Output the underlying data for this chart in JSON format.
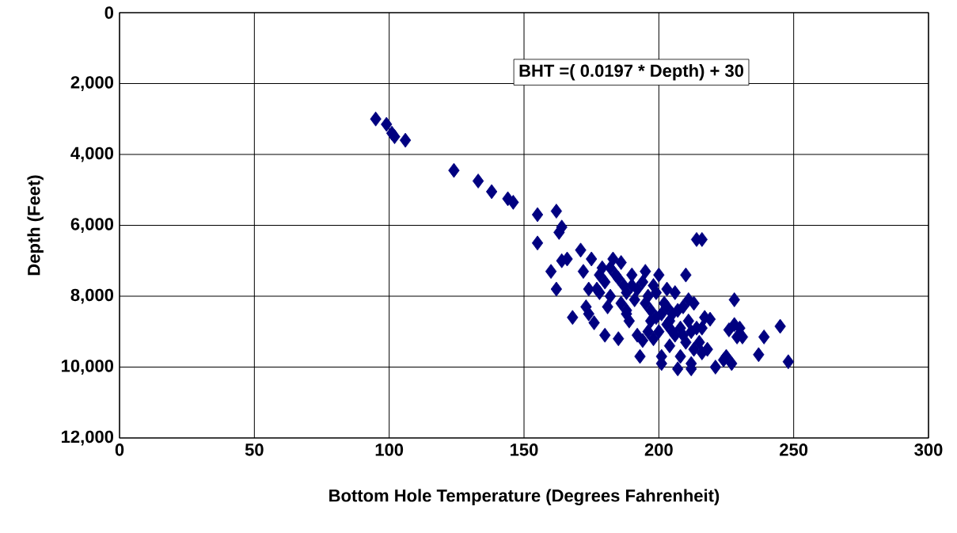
{
  "chart_data": {
    "type": "scatter",
    "xlabel": "Bottom Hole Temperature (Degrees Fahrenheit)",
    "ylabel": "Depth (Feet)",
    "annotations": [
      "BHT =( 0.0197 * Depth) + 30"
    ],
    "xlim": [
      0,
      300
    ],
    "xticks": [
      0,
      50,
      100,
      150,
      200,
      250,
      300
    ],
    "ylim": [
      12000,
      0
    ],
    "yticks": [
      {
        "value": 0,
        "label": "0"
      },
      {
        "value": 2000,
        "label": "2,000"
      },
      {
        "value": 4000,
        "label": "4,000"
      },
      {
        "value": 6000,
        "label": "6,000"
      },
      {
        "value": 8000,
        "label": "8,000"
      },
      {
        "value": 10000,
        "label": "10,000"
      },
      {
        "value": 12000,
        "label": "12,000"
      }
    ],
    "grid": true,
    "marker": "diamond",
    "series": [
      {
        "color": "#000080",
        "x": [
          95,
          99,
          101,
          102,
          106,
          124,
          133,
          138,
          144,
          146,
          155,
          155,
          162,
          163,
          164,
          164,
          166,
          160,
          162,
          168,
          171,
          172,
          173,
          174,
          174,
          175,
          176,
          177,
          178,
          179,
          180,
          180,
          181,
          182,
          183,
          184,
          185,
          186,
          187,
          188,
          188,
          189,
          190,
          191,
          192,
          193,
          194,
          194,
          195,
          196,
          197,
          198,
          199,
          200,
          200,
          201,
          201,
          202,
          203,
          203,
          204,
          205,
          206,
          206,
          207,
          208,
          208,
          209,
          210,
          210,
          211,
          212,
          212,
          213,
          213,
          214,
          216,
          214,
          215,
          216,
          217,
          218,
          219,
          221,
          224,
          225,
          226,
          227,
          228,
          228,
          229,
          230,
          231,
          237,
          239,
          245,
          248,
          185,
          190,
          192,
          195,
          197,
          199,
          201,
          203,
          205,
          207,
          209,
          211,
          212,
          216,
          178,
          182,
          186,
          188,
          196,
          198,
          204
        ],
        "values": [
          3000,
          3150,
          3400,
          3500,
          3600,
          4450,
          4750,
          5050,
          5250,
          5350,
          5700,
          6500,
          5600,
          6200,
          6050,
          7000,
          6950,
          7300,
          7800,
          8600,
          6700,
          7300,
          8300,
          8500,
          7800,
          6950,
          8750,
          7800,
          7400,
          7200,
          9100,
          7600,
          8300,
          7200,
          6950,
          7400,
          9200,
          7050,
          7700,
          8500,
          7900,
          8700,
          7400,
          8100,
          9100,
          9700,
          7600,
          9250,
          7300,
          8000,
          8400,
          7700,
          8600,
          7400,
          9000,
          9700,
          9900,
          8200,
          7800,
          8800,
          9400,
          8500,
          7900,
          9100,
          10050,
          8900,
          9700,
          8300,
          7400,
          9300,
          8700,
          9900,
          10050,
          8200,
          9500,
          6400,
          6400,
          8900,
          9300,
          9600,
          8600,
          9500,
          8650,
          10000,
          9800,
          9700,
          8950,
          9900,
          8100,
          8800,
          9150,
          8900,
          9150,
          9650,
          9150,
          8850,
          9850,
          7500,
          7700,
          7800,
          8200,
          8700,
          7900,
          8500,
          8300,
          9000,
          8400,
          9100,
          8100,
          9000,
          8900,
          7900,
          8000,
          8200,
          8400,
          9000,
          9200,
          8700
        ]
      }
    ]
  }
}
